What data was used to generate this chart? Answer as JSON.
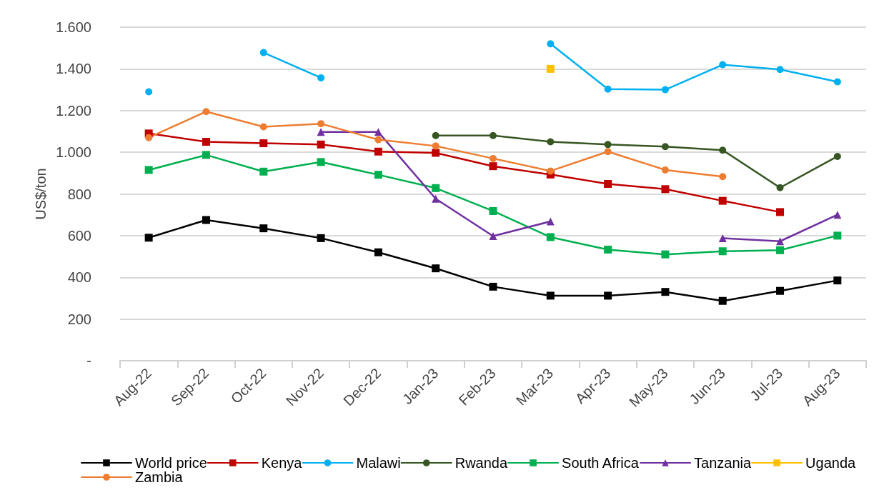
{
  "chart_data": {
    "type": "line",
    "ylabel": "US$/ton",
    "categories": [
      "Aug-22",
      "Sep-22",
      "Oct-22",
      "Nov-22",
      "Dec-22",
      "Jan-23",
      "Feb-23",
      "Mar-23",
      "Apr-23",
      "May-23",
      "Jun-23",
      "Jul-23",
      "Aug-23"
    ],
    "series": [
      {
        "name": "World price",
        "color": "#000000",
        "marker": "square",
        "values": [
          590,
          675,
          635,
          588,
          520,
          443,
          355,
          312,
          312,
          330,
          287,
          335,
          385
        ]
      },
      {
        "name": "Kenya",
        "color": "#c00000",
        "marker": "square",
        "values": [
          1090,
          1050,
          1043,
          1037,
          1003,
          997,
          933,
          893,
          848,
          823,
          767,
          713,
          null
        ]
      },
      {
        "name": "Malawi",
        "color": "#00b0f0",
        "marker": "circle",
        "values": [
          1290,
          null,
          1478,
          1357,
          null,
          null,
          null,
          1520,
          1303,
          1300,
          1420,
          1397,
          1338
        ]
      },
      {
        "name": "Rwanda",
        "color": "#375623",
        "marker": "circle",
        "values": [
          null,
          null,
          null,
          null,
          null,
          1080,
          1080,
          1050,
          1037,
          1027,
          1010,
          830,
          980
        ]
      },
      {
        "name": "South Africa",
        "color": "#00b050",
        "marker": "square",
        "values": [
          915,
          987,
          907,
          953,
          892,
          828,
          718,
          593,
          533,
          510,
          525,
          530,
          600
        ]
      },
      {
        "name": "Tanzania",
        "color": "#7030a0",
        "marker": "triangle",
        "values": [
          null,
          null,
          null,
          1097,
          1097,
          777,
          598,
          668,
          null,
          null,
          588,
          573,
          700
        ]
      },
      {
        "name": "Uganda",
        "color": "#ffc000",
        "marker": "square",
        "values": [
          null,
          null,
          null,
          null,
          null,
          null,
          null,
          1400,
          null,
          null,
          null,
          null,
          null
        ]
      },
      {
        "name": "Zambia",
        "color": "#ed7d31",
        "marker": "circle",
        "values": [
          1070,
          1195,
          1122,
          1137,
          1060,
          1030,
          970,
          910,
          1003,
          915,
          883,
          null,
          null
        ]
      }
    ],
    "ylim": [
      0,
      1600
    ],
    "yticks": [
      {
        "value": 0,
        "label": "-"
      },
      200,
      400,
      600,
      800,
      {
        "value": 1000,
        "label": "1.000"
      },
      {
        "value": 1200,
        "label": "1.200"
      },
      {
        "value": 1400,
        "label": "1.400"
      },
      {
        "value": 1600,
        "label": "1.600"
      }
    ],
    "grid": "y",
    "legend": "bottom",
    "line_style": "solid"
  }
}
